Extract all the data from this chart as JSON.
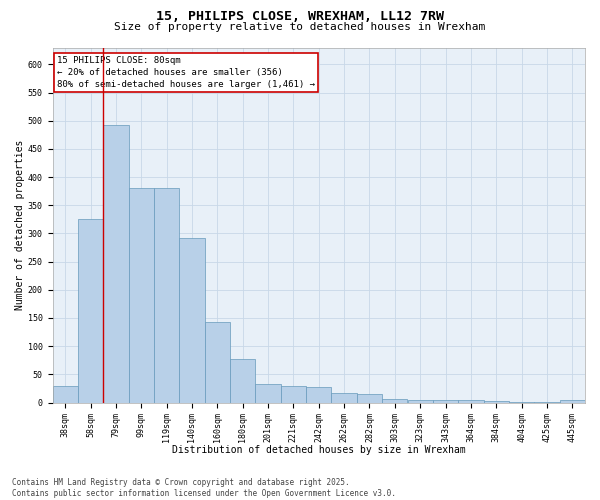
{
  "title1": "15, PHILIPS CLOSE, WREXHAM, LL12 7RW",
  "title2": "Size of property relative to detached houses in Wrexham",
  "xlabel": "Distribution of detached houses by size in Wrexham",
  "ylabel": "Number of detached properties",
  "categories": [
    "38sqm",
    "58sqm",
    "79sqm",
    "99sqm",
    "119sqm",
    "140sqm",
    "160sqm",
    "180sqm",
    "201sqm",
    "221sqm",
    "242sqm",
    "262sqm",
    "282sqm",
    "303sqm",
    "323sqm",
    "343sqm",
    "364sqm",
    "384sqm",
    "404sqm",
    "425sqm",
    "445sqm"
  ],
  "values": [
    30,
    325,
    493,
    380,
    380,
    292,
    143,
    77,
    33,
    30,
    27,
    16,
    15,
    7,
    5,
    4,
    5,
    2,
    1,
    1,
    4
  ],
  "bar_color": "#b8d0e8",
  "bar_edge_color": "#6699bb",
  "vline_color": "#cc0000",
  "vline_x": 1.5,
  "annotation_text": "15 PHILIPS CLOSE: 80sqm\n← 20% of detached houses are smaller (356)\n80% of semi-detached houses are larger (1,461) →",
  "annotation_box_color": "#cc0000",
  "ylim": [
    0,
    630
  ],
  "yticks": [
    0,
    50,
    100,
    150,
    200,
    250,
    300,
    350,
    400,
    450,
    500,
    550,
    600
  ],
  "grid_color": "#c8d8e8",
  "background_color": "#e8f0f8",
  "footer": "Contains HM Land Registry data © Crown copyright and database right 2025.\nContains public sector information licensed under the Open Government Licence v3.0.",
  "title_fontsize": 9.5,
  "subtitle_fontsize": 8,
  "axis_label_fontsize": 7,
  "tick_fontsize": 6,
  "annotation_fontsize": 6.5,
  "footer_fontsize": 5.5
}
